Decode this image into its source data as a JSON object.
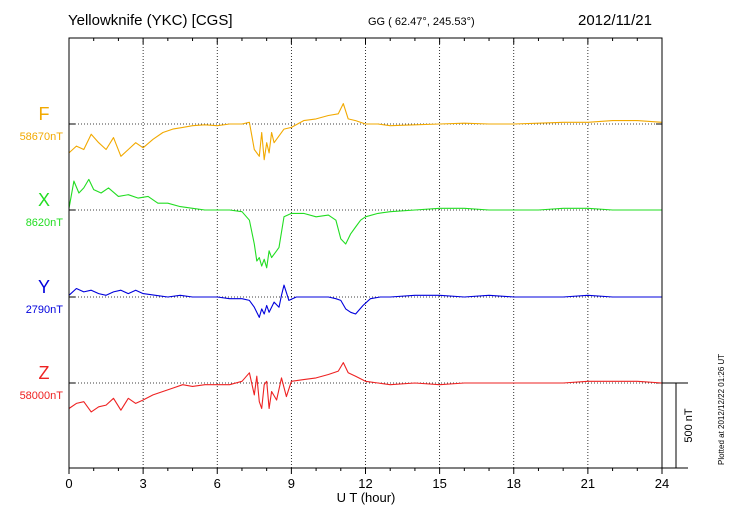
{
  "header": {
    "station": "Yellowknife (YKC)  [CGS]",
    "coords": "GG ( 62.47°, 245.53°)",
    "date": "2012/11/21"
  },
  "footer": {
    "plotted": "Plotted at 2012/12/22 01:26 UT"
  },
  "chart_data": {
    "type": "line",
    "xlabel": "U T (hour)",
    "xlim": [
      0,
      24
    ],
    "xticks": [
      0,
      3,
      6,
      9,
      12,
      15,
      18,
      21,
      24
    ],
    "grid": true,
    "scale_bar_label": "500 nT",
    "scale_bar_nT": 500,
    "series": [
      {
        "name": "F",
        "baseline_label": "58670nT",
        "baseline": 58670,
        "color": "#f2a900",
        "x": [
          0,
          0.3,
          0.6,
          0.9,
          1.2,
          1.5,
          1.8,
          2.1,
          2.4,
          2.7,
          3.0,
          3.4,
          3.8,
          4.2,
          4.6,
          5.0,
          5.5,
          6.0,
          6.5,
          7.0,
          7.3,
          7.5,
          7.7,
          7.8,
          7.9,
          8.0,
          8.1,
          8.2,
          8.3,
          8.5,
          8.7,
          9.0,
          9.5,
          10.0,
          10.5,
          10.9,
          11.1,
          11.3,
          11.6,
          12.0,
          12.5,
          13.0,
          14.0,
          15.0,
          16.0,
          17.0,
          18.0,
          19.0,
          20.0,
          21.0,
          22.0,
          23.0,
          24.0
        ],
        "y": [
          58500,
          58540,
          58520,
          58610,
          58560,
          58520,
          58590,
          58480,
          58520,
          58560,
          58530,
          58580,
          58620,
          58640,
          58650,
          58660,
          58665,
          58660,
          58670,
          58670,
          58680,
          58520,
          58480,
          58620,
          58460,
          58560,
          58500,
          58620,
          58560,
          58600,
          58640,
          58650,
          58690,
          58700,
          58720,
          58730,
          58790,
          58700,
          58690,
          58670,
          58670,
          58660,
          58665,
          58670,
          58675,
          58670,
          58670,
          58675,
          58680,
          58680,
          58690,
          58690,
          58680
        ]
      },
      {
        "name": "X",
        "baseline_label": "8620nT",
        "baseline": 8620,
        "color": "#22dd22",
        "x": [
          0,
          0.2,
          0.4,
          0.6,
          0.8,
          1.0,
          1.3,
          1.6,
          2.0,
          2.4,
          2.8,
          3.2,
          3.6,
          4.0,
          4.5,
          5.0,
          5.5,
          6.0,
          6.5,
          7.0,
          7.3,
          7.5,
          7.6,
          7.7,
          7.8,
          7.9,
          8.0,
          8.1,
          8.2,
          8.4,
          8.5,
          8.7,
          9.0,
          9.5,
          10.0,
          10.5,
          10.8,
          11.0,
          11.2,
          11.4,
          11.6,
          11.8,
          12.0,
          12.5,
          13.0,
          14.0,
          15.0,
          16.0,
          17.0,
          18.0,
          19.0,
          20.0,
          21.0,
          22.0,
          23.0,
          24.0
        ],
        "y": [
          8630,
          8790,
          8720,
          8750,
          8800,
          8740,
          8720,
          8750,
          8700,
          8710,
          8690,
          8700,
          8660,
          8660,
          8640,
          8630,
          8620,
          8620,
          8620,
          8610,
          8560,
          8420,
          8320,
          8340,
          8290,
          8330,
          8280,
          8380,
          8340,
          8380,
          8400,
          8580,
          8600,
          8600,
          8580,
          8590,
          8560,
          8450,
          8420,
          8480,
          8520,
          8560,
          8580,
          8600,
          8610,
          8620,
          8630,
          8630,
          8620,
          8620,
          8620,
          8630,
          8630,
          8620,
          8620,
          8620
        ]
      },
      {
        "name": "Y",
        "baseline_label": "2790nT",
        "baseline": 2790,
        "color": "#0000dd",
        "x": [
          0,
          0.3,
          0.6,
          0.9,
          1.2,
          1.5,
          1.8,
          2.1,
          2.4,
          2.7,
          3.0,
          3.5,
          4.0,
          4.5,
          5.0,
          5.5,
          6.0,
          6.5,
          7.0,
          7.3,
          7.5,
          7.7,
          7.8,
          7.9,
          8.0,
          8.1,
          8.3,
          8.5,
          8.6,
          8.7,
          8.9,
          9.2,
          9.6,
          10.0,
          10.5,
          10.8,
          11.0,
          11.2,
          11.4,
          11.6,
          11.9,
          12.2,
          12.6,
          13.0,
          14.0,
          15.0,
          16.0,
          17.0,
          18.0,
          19.0,
          20.0,
          21.0,
          22.0,
          23.0,
          24.0
        ],
        "y": [
          2800,
          2840,
          2820,
          2830,
          2810,
          2800,
          2820,
          2830,
          2810,
          2830,
          2810,
          2800,
          2790,
          2800,
          2790,
          2790,
          2790,
          2780,
          2780,
          2770,
          2730,
          2670,
          2720,
          2690,
          2740,
          2700,
          2760,
          2730,
          2800,
          2860,
          2770,
          2790,
          2790,
          2790,
          2790,
          2780,
          2770,
          2720,
          2700,
          2690,
          2740,
          2780,
          2790,
          2790,
          2800,
          2800,
          2790,
          2800,
          2790,
          2790,
          2790,
          2800,
          2790,
          2790,
          2790
        ]
      },
      {
        "name": "Z",
        "baseline_label": "58000nT",
        "baseline": 58000,
        "color": "#ee2222",
        "x": [
          0,
          0.3,
          0.6,
          0.9,
          1.2,
          1.5,
          1.8,
          2.1,
          2.4,
          2.7,
          3.0,
          3.4,
          3.8,
          4.2,
          4.6,
          5.0,
          5.5,
          6.0,
          6.5,
          7.0,
          7.3,
          7.5,
          7.6,
          7.7,
          7.8,
          7.9,
          8.0,
          8.1,
          8.2,
          8.4,
          8.6,
          8.8,
          9.0,
          9.5,
          10.0,
          10.5,
          10.9,
          11.1,
          11.3,
          11.6,
          12.0,
          12.5,
          13.0,
          14.0,
          15.0,
          16.0,
          17.0,
          18.0,
          19.0,
          20.0,
          21.0,
          22.0,
          23.0,
          24.0
        ],
        "y": [
          57850,
          57880,
          57890,
          57830,
          57860,
          57870,
          57910,
          57840,
          57910,
          57880,
          57900,
          57930,
          57950,
          57970,
          57990,
          57980,
          57990,
          57990,
          57990,
          58010,
          58060,
          57930,
          58040,
          57890,
          57850,
          57990,
          58010,
          57850,
          57950,
          57900,
          58030,
          57920,
          58010,
          58020,
          58030,
          58050,
          58070,
          58120,
          58060,
          58040,
          58010,
          58000,
          57990,
          58000,
          57990,
          58000,
          58000,
          58000,
          58000,
          58000,
          58010,
          58010,
          58010,
          58000
        ]
      }
    ]
  }
}
